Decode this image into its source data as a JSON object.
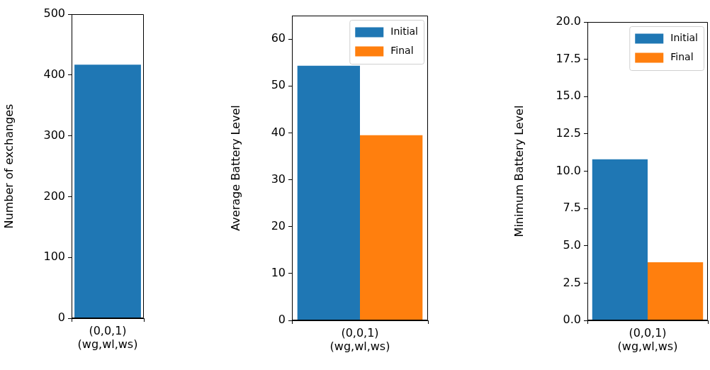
{
  "chart_data": [
    {
      "type": "bar",
      "ylabel": "Number of exchanges",
      "categories": [
        "(0,0,1)\n(wg,wl,ws)"
      ],
      "values": [
        417
      ],
      "color": "#1f77b4",
      "ylim": [
        0,
        500
      ],
      "yticks": [
        0,
        100,
        200,
        300,
        400,
        500
      ]
    },
    {
      "type": "bar",
      "ylabel": "Average Battery Level",
      "categories": [
        "(0,0,1)\n(wg,wl,ws)"
      ],
      "series": [
        {
          "name": "Initial",
          "color": "#1f77b4",
          "values": [
            54.3
          ]
        },
        {
          "name": "Final",
          "color": "#ff7f0e",
          "values": [
            39.5
          ]
        }
      ],
      "ylim": [
        0,
        65
      ],
      "yticks": [
        0,
        10,
        20,
        30,
        40,
        50,
        60
      ],
      "legend": "top right"
    },
    {
      "type": "bar",
      "ylabel": "Minimum Battery Level",
      "categories": [
        "(0,0,1)\n(wg,wl,ws)"
      ],
      "series": [
        {
          "name": "Initial",
          "color": "#1f77b4",
          "values": [
            10.8
          ]
        },
        {
          "name": "Final",
          "color": "#ff7f0e",
          "values": [
            3.9
          ]
        }
      ],
      "ylim": [
        0,
        20
      ],
      "yticks": [
        {
          "value": 0,
          "label": "0.0"
        },
        {
          "value": 2.5,
          "label": "2.5"
        },
        {
          "value": 5,
          "label": "5.0"
        },
        {
          "value": 7.5,
          "label": "7.5"
        },
        {
          "value": 10,
          "label": "10.0"
        },
        {
          "value": 12.5,
          "label": "12.5"
        },
        {
          "value": 15,
          "label": "15.0"
        },
        {
          "value": 17.5,
          "label": "17.5"
        },
        {
          "value": 20,
          "label": "20.0"
        }
      ],
      "legend": "top right"
    }
  ]
}
